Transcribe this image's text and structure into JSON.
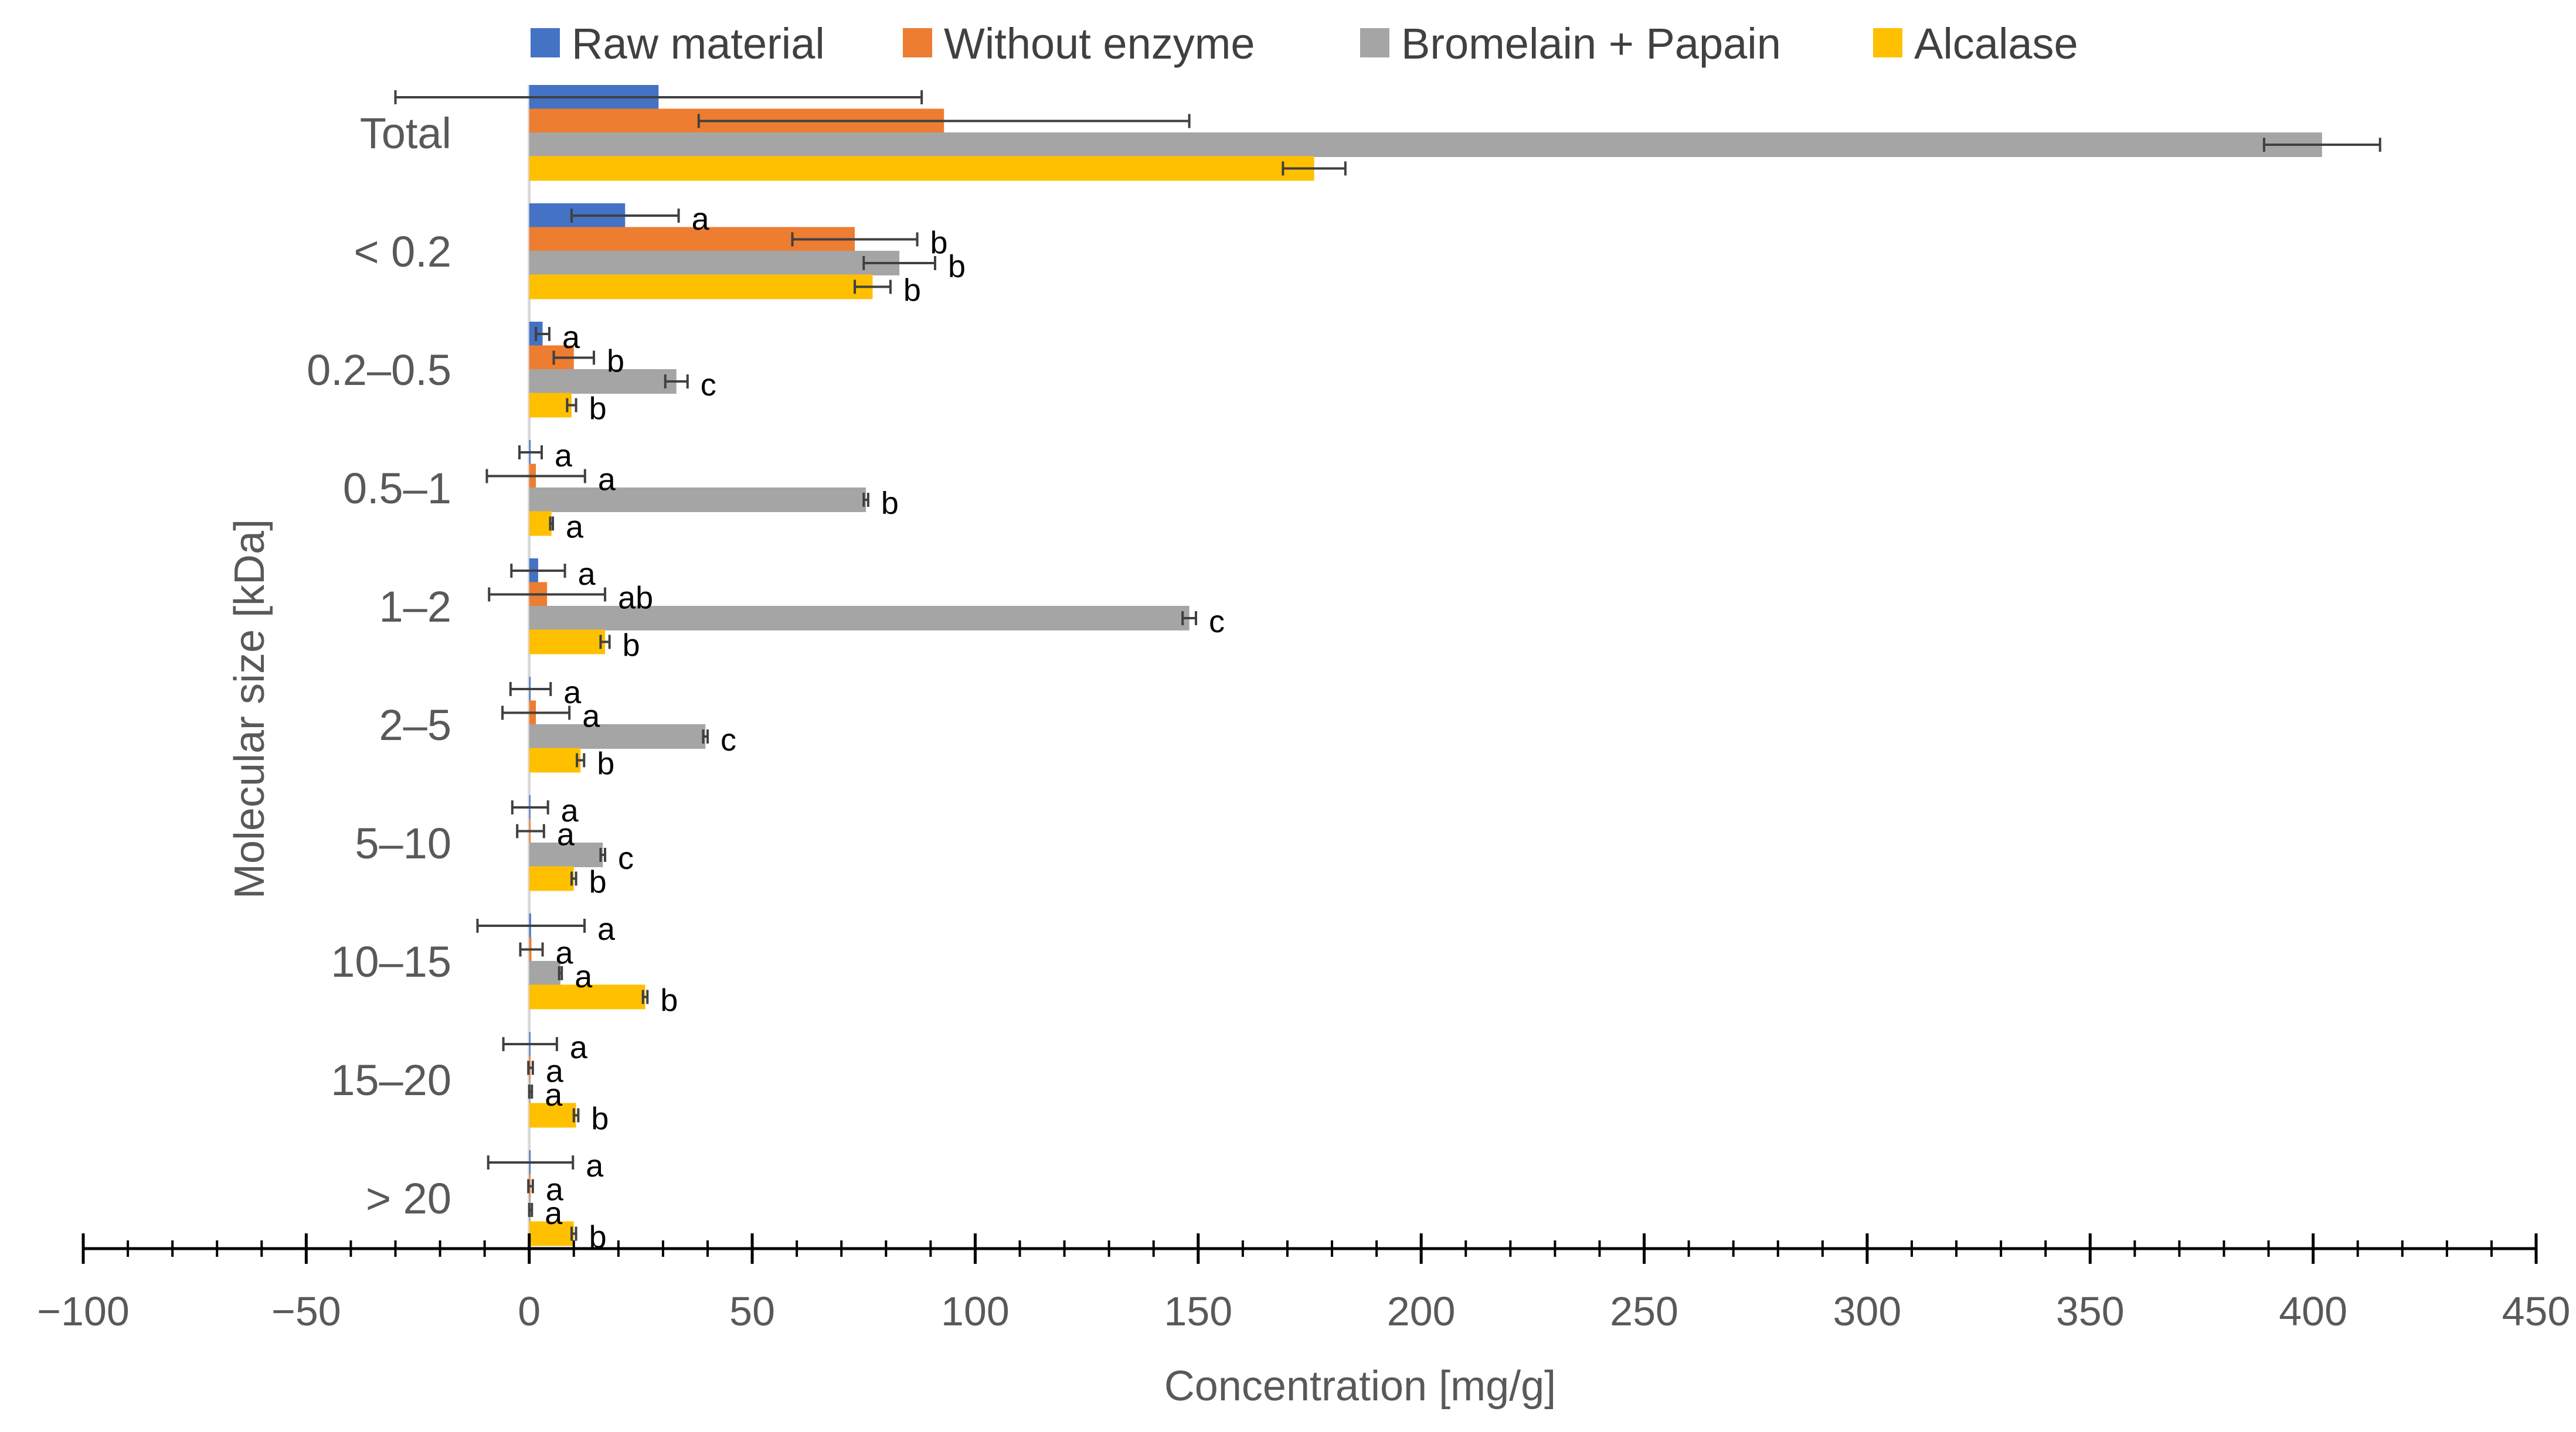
{
  "chart_data": {
    "type": "bar",
    "orientation": "horizontal",
    "title": "",
    "xlabel": "Concentration [mg/g]",
    "ylabel": "Molecular size [kDa]",
    "xlim": [
      -100,
      450
    ],
    "x_ticks": [
      "−100",
      "−50",
      "0",
      "50",
      "100",
      "150",
      "200",
      "250",
      "300",
      "350",
      "400",
      "450"
    ],
    "x_tick_values": [
      -100,
      -50,
      0,
      50,
      100,
      150,
      200,
      250,
      300,
      350,
      400,
      450
    ],
    "minor_tick_step": 10,
    "grid": false,
    "legend_position": "top",
    "categories": [
      "Total",
      "< 0.2",
      "0.2–0.5",
      "0.5–1",
      "1–2",
      "2–5",
      "5–10",
      "10–15",
      "15–20",
      "> 20"
    ],
    "series": [
      {
        "name": "Raw material",
        "color": "#4472C4",
        "values": [
          29,
          21.5,
          3,
          0.3,
          2,
          0.3,
          0.2,
          0.4,
          0.2,
          0.3
        ],
        "errors": [
          59,
          12,
          1.5,
          2.5,
          6,
          4.5,
          4,
          12,
          6,
          9.5
        ],
        "letters": [
          "",
          "a",
          "a",
          "a",
          "a",
          "a",
          "a",
          "a",
          "a",
          "a"
        ]
      },
      {
        "name": "Without enzyme",
        "color": "#ED7D31",
        "values": [
          93,
          73,
          10,
          1.5,
          4,
          1.5,
          0.3,
          0.5,
          0.3,
          0.3
        ],
        "errors": [
          55,
          14,
          4.5,
          11,
          13,
          7.5,
          3,
          2.5,
          0.5,
          0.5
        ],
        "letters": [
          "",
          "b",
          "b",
          "a",
          "ab",
          "a",
          "a",
          "a",
          "a",
          "a"
        ]
      },
      {
        "name": "Bromelain + Papain",
        "color": "#A5A5A5",
        "values": [
          402,
          83,
          33,
          75.5,
          148,
          39.5,
          16.5,
          7,
          0.3,
          0.3
        ],
        "errors": [
          13,
          8,
          2.5,
          0.5,
          1.5,
          0.5,
          0.5,
          0.3,
          0.3,
          0.3
        ],
        "letters": [
          "",
          "b",
          "c",
          "b",
          "c",
          "c",
          "c",
          "a",
          "a",
          "a"
        ]
      },
      {
        "name": "Alcalase",
        "color": "#FFC000",
        "values": [
          176,
          77,
          9.5,
          5,
          17,
          11.5,
          10,
          26,
          10.5,
          10
        ],
        "errors": [
          7,
          4,
          1,
          0.3,
          1,
          0.8,
          0.5,
          0.5,
          0.5,
          0.5
        ],
        "letters": [
          "",
          "b",
          "b",
          "a",
          "b",
          "b",
          "b",
          "b",
          "b",
          "b"
        ]
      }
    ]
  }
}
